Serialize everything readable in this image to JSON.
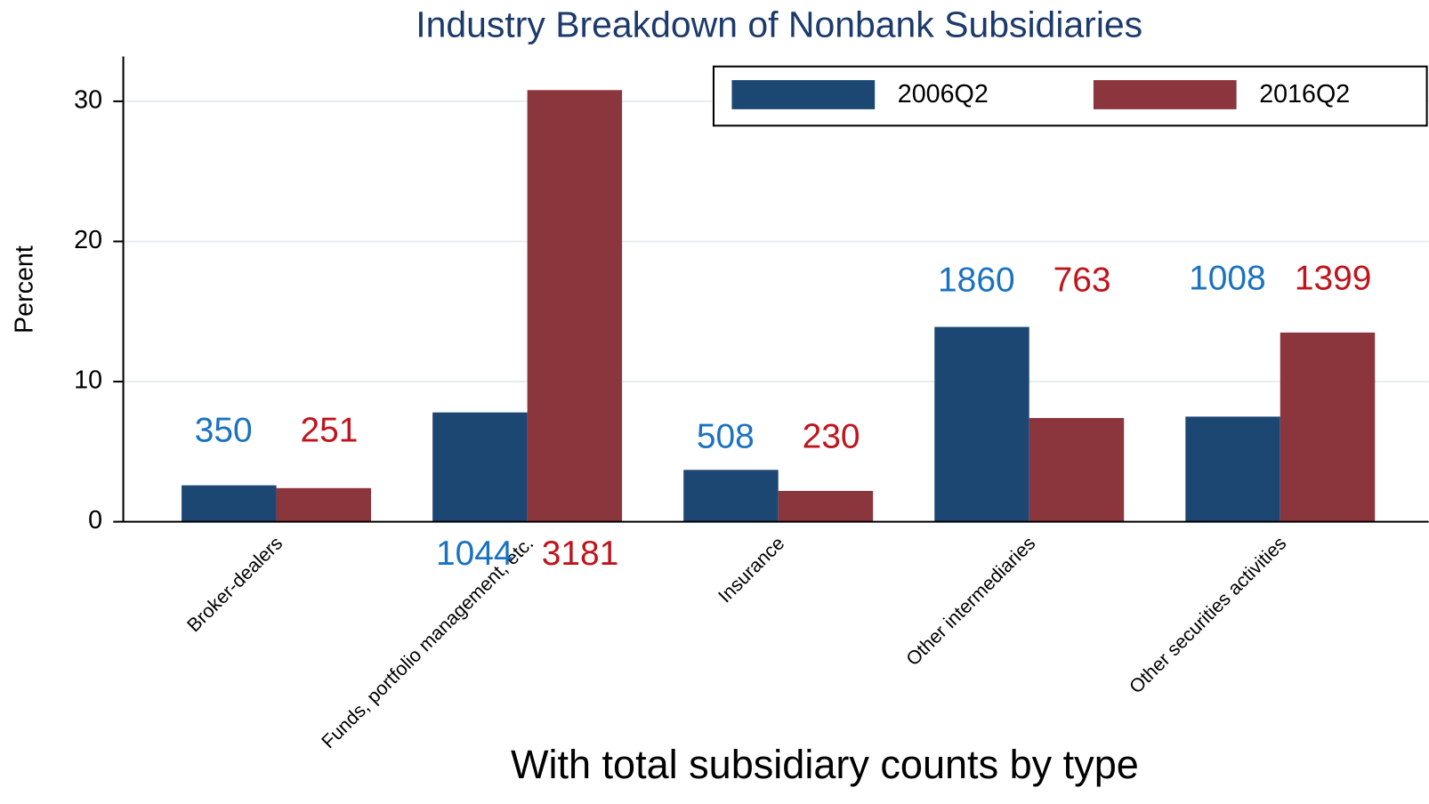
{
  "chart_data": {
    "type": "bar",
    "title": "Industry Breakdown of Nonbank Subsidiaries",
    "subtitle": "With total subsidiary counts by type",
    "y_label": "Percent",
    "categories": [
      "Broker-dealers",
      "Funds, portfolio management, etc.",
      "Insurance",
      "Other intermediaries",
      "Other securities activities"
    ],
    "series": [
      {
        "name": "2006Q2",
        "color": "#1d4773",
        "label_color": "#1a72c0",
        "values": [
          2.6,
          7.8,
          3.7,
          13.9,
          7.5
        ],
        "counts": [
          350,
          1044,
          508,
          1860,
          1008
        ]
      },
      {
        "name": "2016Q2",
        "color": "#8b353d",
        "label_color": "#c0141c",
        "values": [
          2.4,
          30.8,
          2.2,
          7.4,
          13.5
        ],
        "counts": [
          251,
          3181,
          230,
          763,
          1399
        ]
      }
    ],
    "ylim": [
      0,
      33.2
    ],
    "yticks": [
      0,
      10,
      20,
      30
    ],
    "grid": true,
    "legend": "top-right"
  }
}
